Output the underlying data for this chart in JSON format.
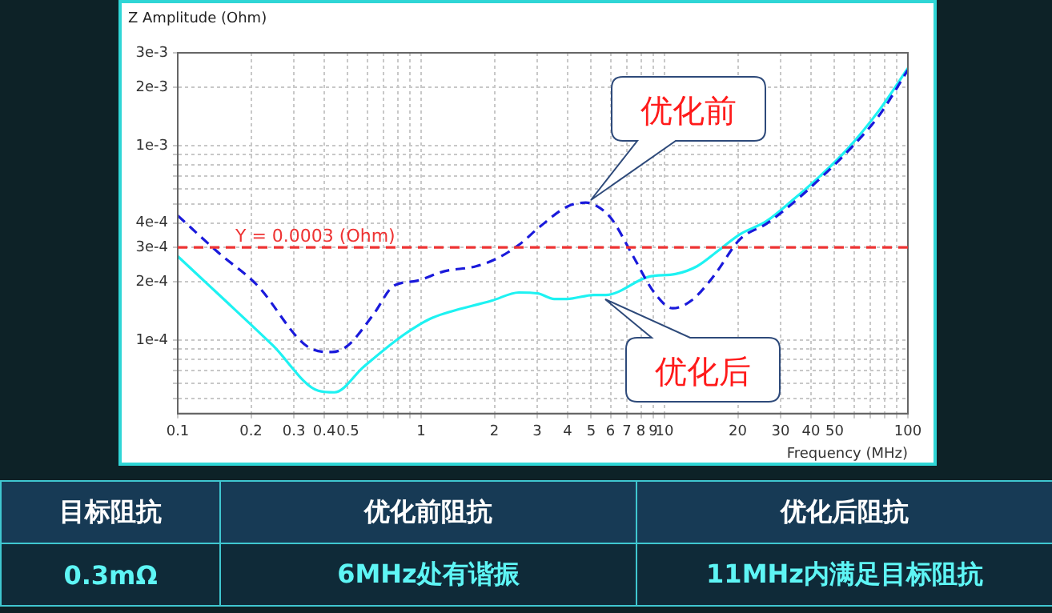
{
  "chart_data": {
    "type": "line",
    "xlabel": "Frequency (MHz)",
    "ylabel": "Z Amplitude (Ohm)",
    "log": "xy",
    "xlim": [
      0.1,
      100
    ],
    "ylim": [
      4.2e-05,
      0.003
    ],
    "xticks": [
      0.1,
      0.2,
      0.3,
      0.4,
      0.5,
      {
        "value": 0.6,
        "label": null
      },
      {
        "value": 0.7,
        "label": null
      },
      {
        "value": 0.8,
        "label": null
      },
      {
        "value": 0.9,
        "label": null
      },
      1,
      2,
      3,
      4,
      5,
      6,
      7,
      8,
      9,
      10,
      20,
      30,
      40,
      50,
      {
        "value": 60,
        "label": null
      },
      {
        "value": 70,
        "label": null
      },
      {
        "value": 80,
        "label": null
      },
      {
        "value": 90,
        "label": null
      },
      100
    ],
    "yticks": [
      {
        "value": 5e-05,
        "label": null
      },
      {
        "value": 6e-05,
        "label": null
      },
      {
        "value": 7e-05,
        "label": null
      },
      {
        "value": 8e-05,
        "label": null
      },
      {
        "value": 9e-05,
        "label": null
      },
      {
        "value": 0.0001,
        "label": "1e-4"
      },
      {
        "value": 0.0002,
        "label": "2e-4"
      },
      {
        "value": 0.0003,
        "label": "3e-4"
      },
      {
        "value": 0.0004,
        "label": "4e-4"
      },
      {
        "value": 0.0005,
        "label": null
      },
      {
        "value": 0.0006,
        "label": null
      },
      {
        "value": 0.0007,
        "label": null
      },
      {
        "value": 0.0008,
        "label": null
      },
      {
        "value": 0.0009,
        "label": null
      },
      {
        "value": 0.001,
        "label": "1e-3"
      },
      {
        "value": 0.002,
        "label": "2e-3"
      },
      {
        "value": 0.003,
        "label": "3e-3"
      }
    ],
    "grid": true,
    "marker": "none",
    "legend": false,
    "series": [
      {
        "color": "#1a1adb",
        "line_style": "dashed",
        "x": [
          0.1,
          0.148,
          0.211,
          0.35,
          0.43,
          0.5,
          0.64,
          0.77,
          0.96,
          1.24,
          1.68,
          2.06,
          2.52,
          3.09,
          3.98,
          4.75,
          5.19,
          6.04,
          7.4,
          9.07,
          10.8,
          12.9,
          15.85,
          20.4,
          26.3,
          33.9,
          43.7,
          56.4,
          76.5,
          100
        ],
        "values": [
          0.000437,
          0.00028,
          0.000193,
          9.1e-05,
          8.7e-05,
          9.4e-05,
          0.000137,
          0.00019,
          0.000202,
          0.000226,
          0.00024,
          0.000264,
          0.000309,
          0.000385,
          0.000486,
          0.00051,
          0.000495,
          0.000423,
          0.000273,
          0.000176,
          0.000146,
          0.00016,
          0.000212,
          0.00033,
          0.000398,
          0.00051,
          0.00068,
          0.00093,
          0.00144,
          0.00245
        ]
      },
      {
        "color": "#1ef2f2",
        "line_style": "solid",
        "x": [
          0.1,
          0.148,
          0.246,
          0.378,
          0.44,
          0.58,
          0.79,
          0.99,
          1.12,
          1.96,
          2.52,
          3.02,
          3.52,
          3.98,
          5.12,
          5.74,
          8.61,
          11.1,
          13.6,
          16.7,
          20.4,
          26.3,
          33.9,
          43.7,
          56.4,
          76.5,
          100
        ],
        "values": [
          0.00027,
          0.000171,
          9.4e-05,
          5.5e-05,
          5.4e-05,
          7.3e-05,
          0.0001,
          0.000121,
          0.000131,
          0.00016,
          0.000176,
          0.000174,
          0.000163,
          0.000163,
          0.000171,
          0.000171,
          0.000212,
          0.000219,
          0.00024,
          0.00029,
          0.00035,
          0.00041,
          0.00053,
          0.0007,
          0.00096,
          0.00153,
          0.0025
        ]
      }
    ],
    "ref_lines": [
      {
        "axis": "y",
        "value": 0.0003,
        "label": "Y = 0.0003 (Ohm)",
        "color": "#ee3333",
        "line_style": "dashed"
      }
    ],
    "annotations": [
      {
        "text": "优化前",
        "x": 5,
        "y": 0.0005
      },
      {
        "text": "优化后",
        "x": 5.7,
        "y": 0.000171
      },
      "目标阻抗",
      "优化前阻抗",
      "优化后阻抗",
      "0.3mΩ",
      "6MHz处有谐振",
      "11MHz内满足目标阻抗"
    ]
  }
}
